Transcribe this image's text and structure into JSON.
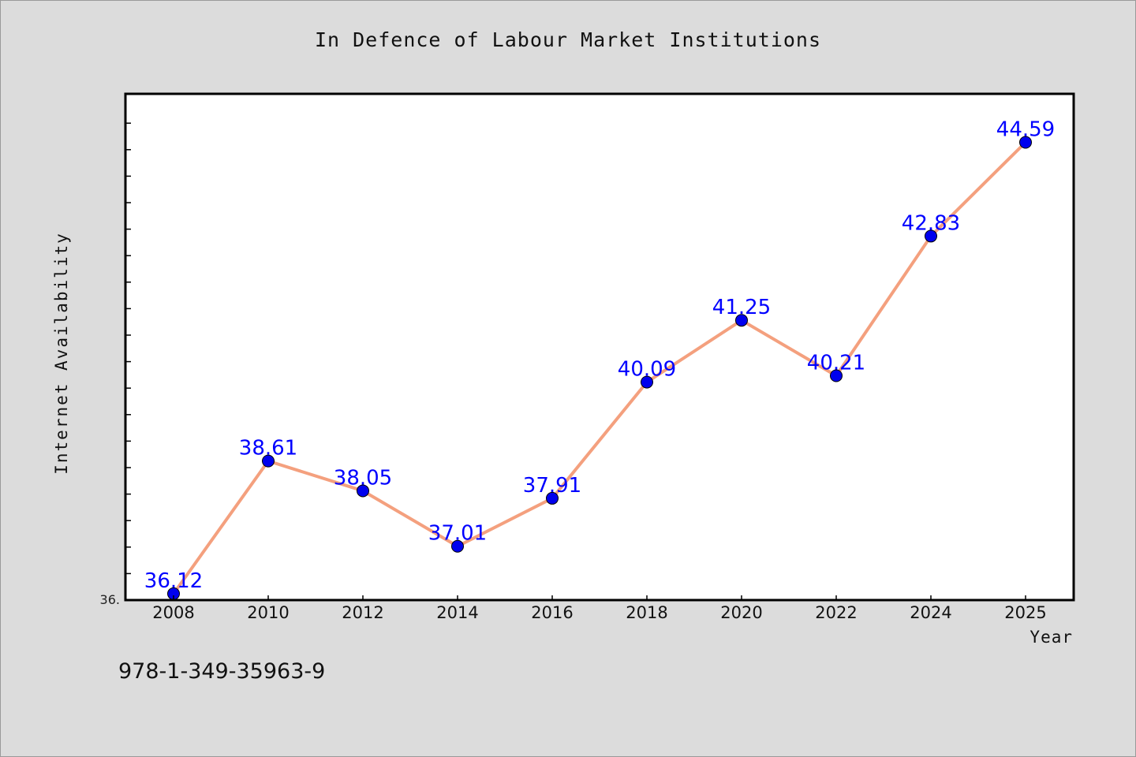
{
  "title": "In Defence of Labour Market Institutions",
  "footer_text": "978-1-349-35963-9",
  "chart_data": {
    "type": "line",
    "title": "In Defence of Labour Market Institutions",
    "xlabel": "Year",
    "ylabel": "Internet Availability",
    "categories": [
      "2008",
      "2010",
      "2012",
      "2014",
      "2016",
      "2018",
      "2020",
      "2022",
      "2024",
      "2025"
    ],
    "series": [
      {
        "values": [
          36.12,
          38.61,
          38.05,
          37.01,
          37.91,
          40.09,
          41.25,
          40.21,
          42.83,
          44.59
        ],
        "labels": [
          "36.12",
          "38.61",
          "38.05",
          "37.01",
          "37.91",
          "40.09",
          "41.25",
          "40.21",
          "42.83",
          "44.59"
        ]
      }
    ],
    "ylim": [
      36.0,
      45.5
    ],
    "y_tick_label": "36.",
    "grid": false,
    "line_color": "#f4a07e",
    "marker_color": "#0000ee",
    "label_color": "#0000ff"
  }
}
